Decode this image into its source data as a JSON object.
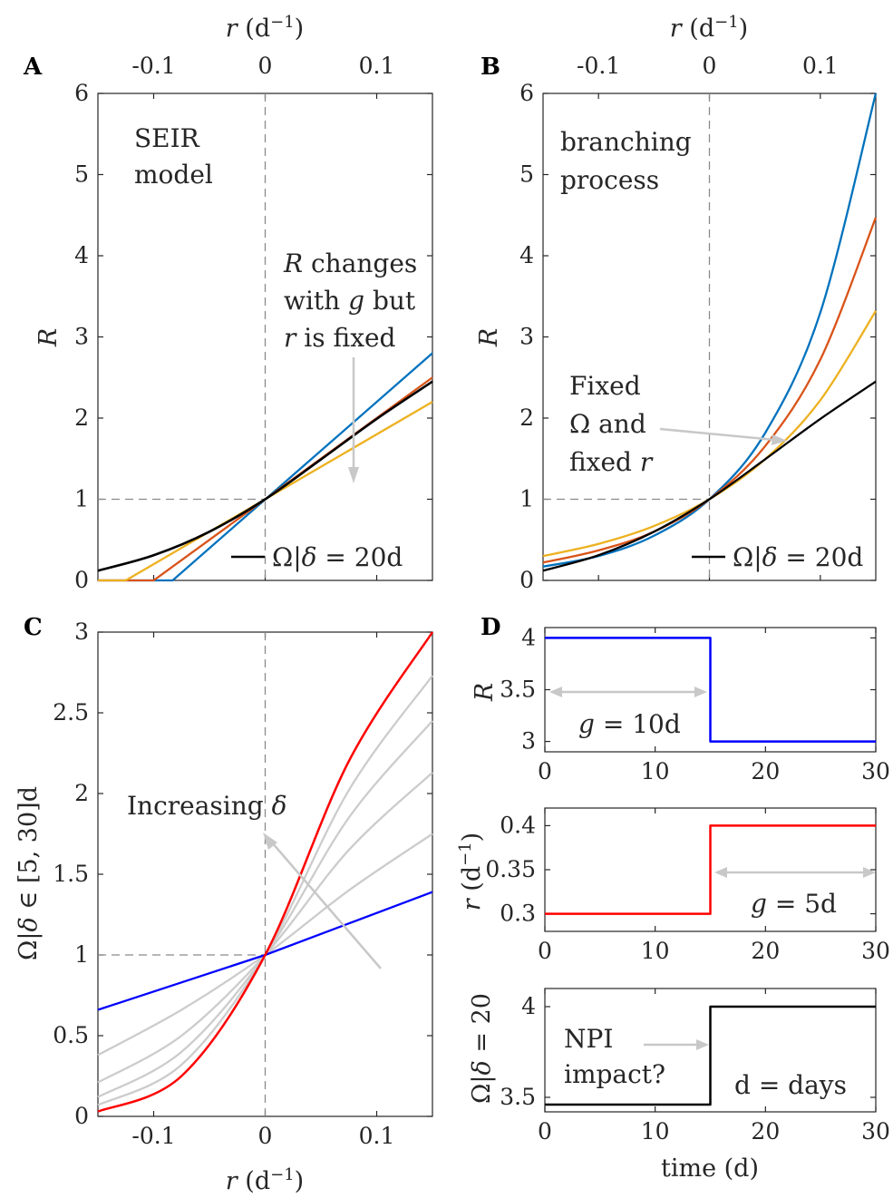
{
  "colors": {
    "blue_matlab": "#0072BD",
    "orange": "#D95319",
    "yellow": "#EDB120",
    "black": "#000000",
    "blue": "#0000FF",
    "red": "#FF0000",
    "gray": "#CCCCCC"
  },
  "chart_data": [
    {
      "panel": "A",
      "type": "line",
      "xlabel_top": "r (d⁻¹)",
      "ylabel": "R",
      "xlim": [
        -0.15,
        0.15
      ],
      "ylim": [
        0,
        6
      ],
      "xticks": [
        "-0.1",
        "0",
        "0.1"
      ],
      "yticks": [
        "0",
        "1",
        "2",
        "3",
        "4",
        "5",
        "6"
      ],
      "annotations": [
        "SEIR",
        "model",
        "R changes",
        "with g but",
        "r is fixed"
      ],
      "legend": "Ω|δ = 20d",
      "series": [
        {
          "color": "blue_matlab",
          "x": [
            -0.15,
            -0.083,
            0.15
          ],
          "y": [
            0,
            0,
            2.8
          ]
        },
        {
          "color": "orange",
          "x": [
            -0.15,
            -0.1,
            0.15
          ],
          "y": [
            0,
            0,
            2.5
          ]
        },
        {
          "color": "yellow",
          "x": [
            -0.15,
            -0.125,
            0.15
          ],
          "y": [
            0,
            0,
            2.2
          ]
        },
        {
          "color": "black",
          "x": [
            -0.15,
            -0.1,
            -0.05,
            0,
            0.05,
            0.1,
            0.15
          ],
          "y": [
            0.12,
            0.31,
            0.6,
            1.0,
            1.49,
            1.99,
            2.45
          ]
        }
      ]
    },
    {
      "panel": "B",
      "type": "line",
      "xlabel_top": "r (d⁻¹)",
      "ylabel": "R",
      "xlim": [
        -0.15,
        0.15
      ],
      "ylim": [
        0,
        6
      ],
      "xticks": [
        "-0.1",
        "0",
        "0.1"
      ],
      "yticks": [
        "0",
        "1",
        "2",
        "3",
        "4",
        "5",
        "6"
      ],
      "annotations": [
        "branching",
        "process",
        "Fixed",
        "Ω and",
        "fixed r"
      ],
      "legend": "Ω|δ = 20d",
      "series": [
        {
          "color": "blue_matlab",
          "x": [
            -0.15,
            -0.1,
            -0.05,
            0,
            0.05,
            0.1,
            0.15
          ],
          "y": [
            0.17,
            0.3,
            0.55,
            1.0,
            1.81,
            3.3,
            6.0
          ]
        },
        {
          "color": "orange",
          "x": [
            -0.15,
            -0.1,
            -0.05,
            0,
            0.05,
            0.1,
            0.15
          ],
          "y": [
            0.22,
            0.37,
            0.6,
            1.0,
            1.65,
            2.72,
            4.47
          ]
        },
        {
          "color": "yellow",
          "x": [
            -0.15,
            -0.1,
            -0.05,
            0,
            0.05,
            0.1,
            0.15
          ],
          "y": [
            0.3,
            0.45,
            0.67,
            1.0,
            1.49,
            2.22,
            3.32
          ]
        },
        {
          "color": "black",
          "x": [
            -0.15,
            -0.1,
            -0.05,
            0,
            0.05,
            0.1,
            0.15
          ],
          "y": [
            0.12,
            0.31,
            0.6,
            1.0,
            1.49,
            1.99,
            2.45
          ]
        }
      ]
    },
    {
      "panel": "C",
      "type": "line",
      "xlabel": "r (d⁻¹)",
      "ylabel": "Ω|δ ∈ [5, 30]d",
      "xlim": [
        -0.15,
        0.15
      ],
      "ylim": [
        0,
        3
      ],
      "xticks": [
        "-0.1",
        "0",
        "0.1"
      ],
      "yticks": [
        "0",
        "0.5",
        "1",
        "1.5",
        "2",
        "2.5",
        "3"
      ],
      "annotations": [
        "Increasing δ"
      ],
      "series": [
        {
          "color": "blue",
          "x": [
            -0.15,
            0,
            0.15
          ],
          "y": [
            0.66,
            1.0,
            1.39
          ]
        },
        {
          "color": "gray",
          "x": [
            -0.15,
            -0.075,
            0,
            0.075,
            0.15
          ],
          "y": [
            0.38,
            0.66,
            1.0,
            1.4,
            1.75
          ]
        },
        {
          "color": "gray",
          "x": [
            -0.15,
            -0.075,
            0,
            0.075,
            0.15
          ],
          "y": [
            0.21,
            0.5,
            1.0,
            1.65,
            2.13
          ]
        },
        {
          "color": "gray",
          "x": [
            -0.15,
            -0.075,
            0,
            0.075,
            0.15
          ],
          "y": [
            0.12,
            0.4,
            1.0,
            1.85,
            2.45
          ]
        },
        {
          "color": "gray",
          "x": [
            -0.15,
            -0.075,
            0,
            0.075,
            0.15
          ],
          "y": [
            0.07,
            0.32,
            1.0,
            2.02,
            2.73
          ]
        },
        {
          "color": "red",
          "x": [
            -0.15,
            -0.075,
            0,
            0.075,
            0.15
          ],
          "y": [
            0.03,
            0.25,
            1.0,
            2.2,
            3.0
          ]
        }
      ]
    },
    {
      "panel": "D",
      "type": "line",
      "subplots": [
        {
          "ylabel": "R",
          "xlim": [
            0,
            30
          ],
          "ylim": [
            2.9,
            4.1
          ],
          "xticks": [
            "0",
            "10",
            "20",
            "30"
          ],
          "yticks": [
            "3",
            "3.5",
            "4"
          ],
          "annotation": "g = 10d",
          "series": [
            {
              "color": "blue",
              "x": [
                0,
                15,
                15,
                30
              ],
              "y": [
                4,
                4,
                3,
                3
              ]
            }
          ]
        },
        {
          "ylabel": "r (d⁻¹)",
          "xlim": [
            0,
            30
          ],
          "ylim": [
            0.28,
            0.42
          ],
          "xticks": [
            "0",
            "10",
            "20",
            "30"
          ],
          "yticks": [
            "0.3",
            "0.35",
            "0.4"
          ],
          "annotation": "g = 5d",
          "series": [
            {
              "color": "red",
              "x": [
                0,
                15,
                15,
                30
              ],
              "y": [
                0.3,
                0.3,
                0.4,
                0.4
              ]
            }
          ]
        },
        {
          "ylabel": "Ω|δ = 20",
          "xlabel": "time (d)",
          "xlim": [
            0,
            30
          ],
          "ylim": [
            3.42,
            4.1
          ],
          "xticks": [
            "0",
            "10",
            "20",
            "30"
          ],
          "yticks": [
            "3.5",
            "4"
          ],
          "annotations": [
            "NPI",
            "impact?",
            "d = days"
          ],
          "series": [
            {
              "color": "black",
              "x": [
                0,
                15,
                15,
                30
              ],
              "y": [
                3.46,
                3.46,
                4,
                4
              ]
            }
          ]
        }
      ]
    }
  ],
  "labels": {
    "A": "A",
    "B": "B",
    "C": "C",
    "D": "D",
    "r_unit": "(d⁻¹)"
  }
}
